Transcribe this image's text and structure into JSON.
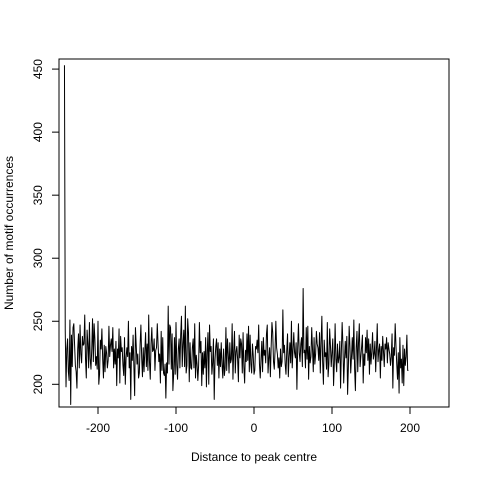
{
  "chart_data": {
    "type": "line",
    "title": "",
    "xlabel": "Distance to peak centre",
    "ylabel": "Number of motif occurrences",
    "xlim": [
      -250,
      250
    ],
    "ylim": [
      182,
      458
    ],
    "xticks": [
      -200,
      -100,
      0,
      100,
      200
    ],
    "yticks": [
      200,
      250,
      300,
      350,
      400,
      450
    ],
    "xtick_labels": [
      "-200",
      "-100",
      "0",
      "100",
      "200"
    ],
    "ytick_labels": [
      "200",
      "250",
      "300",
      "350",
      "400",
      "450"
    ],
    "grid": false,
    "legend": "none",
    "line_color": "#000000",
    "series": [
      {
        "x_start": -243,
        "x_step": 1,
        "values": [
          453,
          243,
          198,
          228,
          236,
          210,
          203,
          251,
          184,
          239,
          214,
          245,
          248,
          231,
          215,
          210,
          197,
          228,
          240,
          213,
          247,
          224,
          217,
          238,
          231,
          232,
          255,
          220,
          205,
          243,
          232,
          213,
          249,
          220,
          212,
          228,
          252,
          218,
          248,
          236,
          215,
          222,
          212,
          250,
          200,
          208,
          235,
          228,
          244,
          220,
          205,
          231,
          210,
          230,
          225,
          213,
          219,
          246,
          222,
          231,
          236,
          226,
          245,
          213,
          228,
          216,
          234,
          199,
          228,
          221,
          244,
          201,
          238,
          226,
          229,
          215,
          207,
          237,
          200,
          221,
          229,
          222,
          250,
          213,
          225,
          188,
          230,
          219,
          239,
          214,
          191,
          245,
          231,
          216,
          224,
          205,
          209,
          232,
          247,
          221,
          206,
          229,
          210,
          226,
          241,
          214,
          232,
          211,
          255,
          218,
          204,
          232,
          245,
          226,
          227,
          236,
          211,
          227,
          229,
          248,
          232,
          218,
          224,
          201,
          242,
          211,
          237,
          209,
          207,
          216,
          189,
          217,
          209,
          262,
          216,
          247,
          245,
          212,
          240,
          195,
          208,
          237,
          208,
          249,
          215,
          204,
          228,
          236,
          213,
          239,
          254,
          214,
          232,
          243,
          214,
          262,
          209,
          215,
          252,
          241,
          202,
          233,
          213,
          212,
          229,
          236,
          213,
          248,
          205,
          223,
          216,
          203,
          215,
          249,
          225,
          234,
          199,
          225,
          208,
          226,
          213,
          237,
          198,
          226,
          241,
          200,
          247,
          226,
          230,
          208,
          217,
          236,
          188,
          219,
          230,
          236,
          215,
          233,
          205,
          228,
          214,
          233,
          216,
          205,
          228,
          207,
          213,
          245,
          211,
          236,
          224,
          209,
          233,
          217,
          220,
          248,
          204,
          227,
          242,
          209,
          226,
          230,
          220,
          202,
          239,
          221,
          236,
          232,
          209,
          241,
          214,
          201,
          227,
          218,
          240,
          219,
          246,
          210,
          239,
          216,
          209,
          232,
          223,
          208,
          211,
          230,
          228,
          235,
          225,
          247,
          216,
          205,
          220,
          234,
          210,
          237,
          223,
          227,
          217,
          240,
          247,
          209,
          221,
          229,
          206,
          230,
          249,
          241,
          218,
          212,
          227,
          250,
          229,
          224,
          213,
          221,
          205,
          228,
          214,
          218,
          259,
          225,
          231,
          216,
          208,
          227,
          240,
          206,
          222,
          233,
          217,
          250,
          213,
          227,
          241,
          225,
          221,
          233,
          196,
          229,
          248,
          225,
          218,
          232,
          237,
          214,
          276,
          225,
          227,
          213,
          245,
          220,
          246,
          204,
          230,
          217,
          222,
          245,
          228,
          210,
          237,
          216,
          224,
          242,
          232,
          229,
          219,
          241,
          209,
          233,
          254,
          218,
          200,
          235,
          222,
          225,
          212,
          249,
          206,
          216,
          244,
          231,
          214,
          225,
          236,
          199,
          217,
          248,
          220,
          210,
          232,
          217,
          221,
          234,
          197,
          226,
          249,
          232,
          201,
          219,
          234,
          221,
          238,
          192,
          214,
          246,
          230,
          209,
          222,
          237,
          220,
          251,
          212,
          195,
          229,
          242,
          210,
          233,
          248,
          214,
          222,
          230,
          239,
          201,
          224,
          215,
          237,
          225,
          243,
          219,
          236,
          208,
          232,
          216,
          226,
          241,
          220,
          224,
          234,
          210,
          228,
          248,
          218,
          227,
          232,
          205,
          230,
          219,
          238,
          226,
          214,
          232,
          228,
          237,
          217,
          233,
          228,
          224,
          215,
          222,
          240,
          197,
          229,
          223,
          248,
          231,
          216,
          204,
          225,
          193,
          237,
          213,
          220,
          201,
          231,
          199,
          228,
          215,
          222,
          239,
          211,
          211
        ]
      }
    ]
  }
}
